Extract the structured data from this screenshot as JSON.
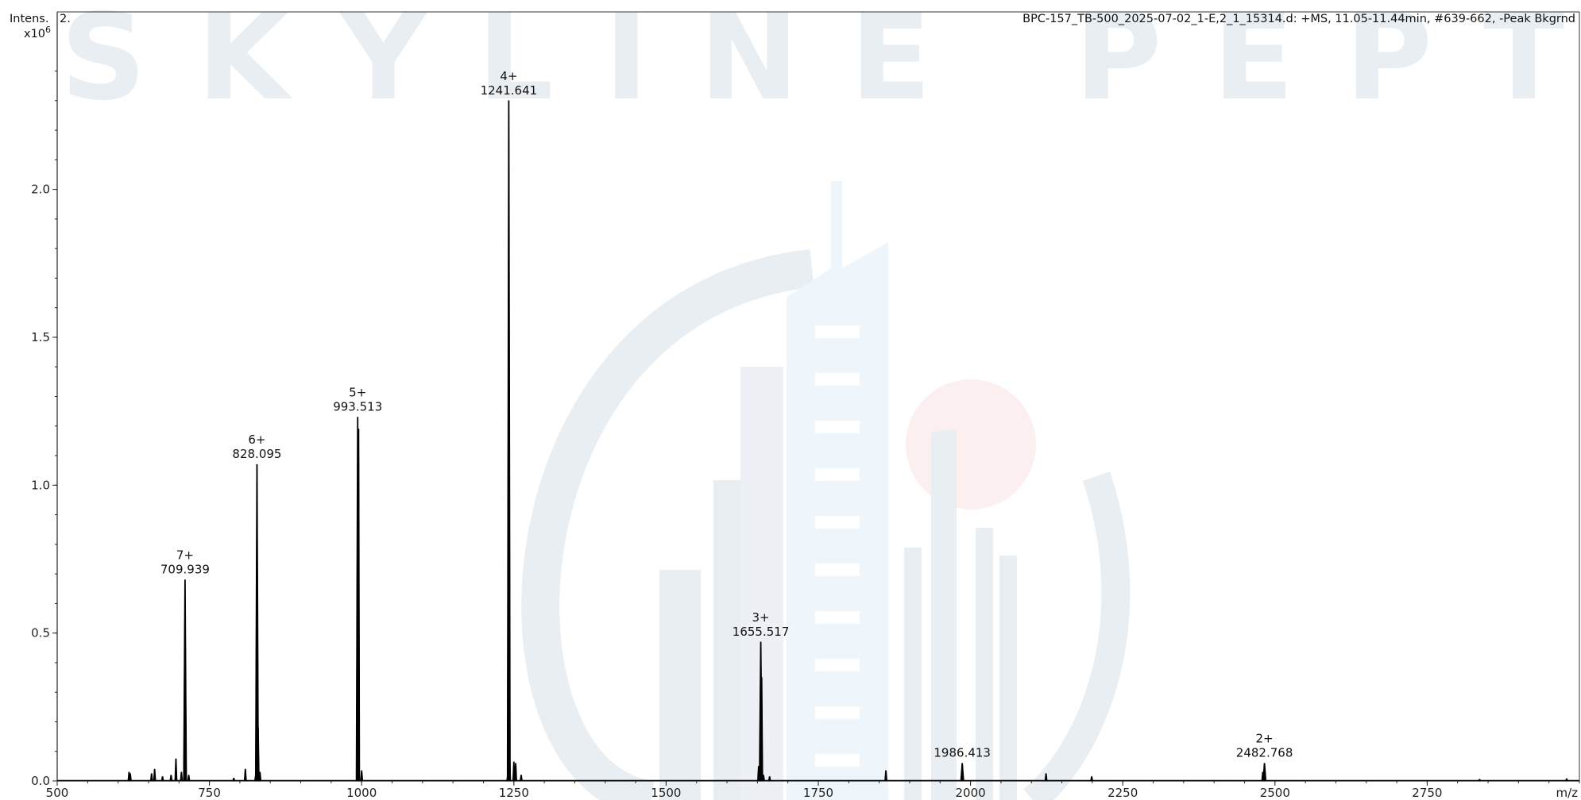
{
  "watermark": {
    "text": "SKYLINE PEPTIDES"
  },
  "header": {
    "title_fragment": "2.",
    "info": "BPC-157_TB-500_2025-07-02_1-E,2_1_15314.d: +MS, 11.05-11.44min, #639-662, -Peak Bkgrnd"
  },
  "axes": {
    "ylabel_line1": "Intens.",
    "ylabel_line2": "x10",
    "ylabel_exp": "6",
    "xlabel": "m/z"
  },
  "chart_data": {
    "type": "line",
    "title": "",
    "xlabel": "m/z",
    "ylabel": "Intens. x10^6",
    "xlim": [
      500,
      3000
    ],
    "ylim": [
      0,
      2.6
    ],
    "x_ticks": [
      "500",
      "750",
      "1000",
      "1250",
      "1500",
      "1750",
      "2000",
      "2250",
      "2500",
      "2750"
    ],
    "y_ticks": [
      "0.0",
      "0.5",
      "1.0",
      "1.5",
      "2.0"
    ],
    "grid": false,
    "labeled_peaks": [
      {
        "charge": "7+",
        "mz_label": "709.939",
        "x": 709.939,
        "y": 0.68
      },
      {
        "charge": "6+",
        "mz_label": "828.095",
        "x": 828.095,
        "y": 1.07
      },
      {
        "charge": "5+",
        "mz_label": "993.513",
        "x": 993.513,
        "y": 1.23
      },
      {
        "charge": "4+",
        "mz_label": "1241.641",
        "x": 1241.641,
        "y": 2.3
      },
      {
        "charge": "3+",
        "mz_label": "1655.517",
        "x": 1655.517,
        "y": 0.47
      },
      {
        "charge": "",
        "mz_label": "1986.413",
        "x": 1986.413,
        "y": 0.06
      },
      {
        "charge": "2+",
        "mz_label": "2482.768",
        "x": 2482.768,
        "y": 0.06
      }
    ],
    "minor_peaks": [
      {
        "x": 618,
        "y": 0.03
      },
      {
        "x": 620,
        "y": 0.025
      },
      {
        "x": 655,
        "y": 0.025
      },
      {
        "x": 660,
        "y": 0.04
      },
      {
        "x": 673,
        "y": 0.015
      },
      {
        "x": 687,
        "y": 0.02
      },
      {
        "x": 695,
        "y": 0.075
      },
      {
        "x": 704,
        "y": 0.03
      },
      {
        "x": 716,
        "y": 0.02
      },
      {
        "x": 790,
        "y": 0.01
      },
      {
        "x": 809,
        "y": 0.04
      },
      {
        "x": 826,
        "y": 0.02
      },
      {
        "x": 830,
        "y": 0.18
      },
      {
        "x": 833,
        "y": 0.03
      },
      {
        "x": 995,
        "y": 1.19
      },
      {
        "x": 1000,
        "y": 0.035
      },
      {
        "x": 1240,
        "y": 0.02
      },
      {
        "x": 1243,
        "y": 0.08
      },
      {
        "x": 1250,
        "y": 0.065
      },
      {
        "x": 1253,
        "y": 0.06
      },
      {
        "x": 1262,
        "y": 0.02
      },
      {
        "x": 1652,
        "y": 0.05
      },
      {
        "x": 1657,
        "y": 0.35
      },
      {
        "x": 1660,
        "y": 0.02
      },
      {
        "x": 1670,
        "y": 0.015
      },
      {
        "x": 1861,
        "y": 0.035
      },
      {
        "x": 2124,
        "y": 0.025
      },
      {
        "x": 2199,
        "y": 0.015
      },
      {
        "x": 2480,
        "y": 0.03
      },
      {
        "x": 2836,
        "y": 0.006
      },
      {
        "x": 2979,
        "y": 0.008
      }
    ],
    "line_color": "#000000",
    "watermark_colors": {
      "logo_blue": "#e9eef3",
      "building_light": "#eef6fb",
      "sun_red": "#fbeff0"
    }
  }
}
